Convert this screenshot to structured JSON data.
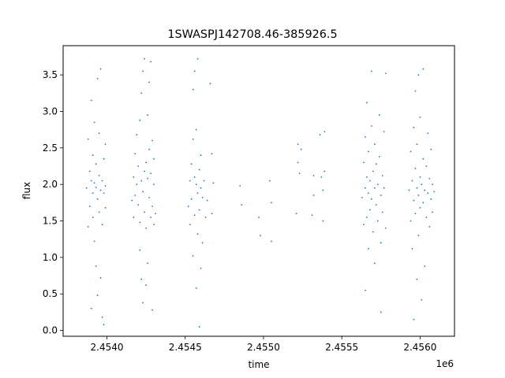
{
  "chart_data": {
    "type": "scatter",
    "title": "1SWASPJ142708.46-385926.5",
    "xlabel": "time",
    "ylabel": "flux",
    "x_offset_label": "1e6",
    "xlim": [
      2.45372,
      2.45622
    ],
    "ylim": [
      -0.08,
      3.9
    ],
    "x_ticks": [
      {
        "value": 2.454,
        "label": "2.4540"
      },
      {
        "value": 2.4545,
        "label": "2.4545"
      },
      {
        "value": 2.455,
        "label": "2.4550"
      },
      {
        "value": 2.4555,
        "label": "2.4555"
      },
      {
        "value": 2.456,
        "label": "2.4560"
      }
    ],
    "y_ticks": [
      {
        "value": 0.0,
        "label": "0.0"
      },
      {
        "value": 0.5,
        "label": "0.5"
      },
      {
        "value": 1.0,
        "label": "1.0"
      },
      {
        "value": 1.5,
        "label": "1.5"
      },
      {
        "value": 2.0,
        "label": "2.0"
      },
      {
        "value": 2.5,
        "label": "2.5"
      },
      {
        "value": 3.0,
        "label": "3.0"
      },
      {
        "value": 3.5,
        "label": "3.5"
      }
    ],
    "grid": false,
    "marker_color": "#1f77b4",
    "series": [
      {
        "points": [
          [
            2.45387,
            1.95
          ],
          [
            2.45388,
            2.62
          ],
          [
            2.45388,
            1.42
          ],
          [
            2.45389,
            2.18
          ],
          [
            2.45389,
            1.7
          ],
          [
            2.4539,
            2.05
          ],
          [
            2.4539,
            3.15
          ],
          [
            2.4539,
            0.3
          ],
          [
            2.45391,
            1.88
          ],
          [
            2.45391,
            2.4
          ],
          [
            2.45391,
            1.55
          ],
          [
            2.45392,
            2.02
          ],
          [
            2.45392,
            2.85
          ],
          [
            2.45392,
            1.22
          ],
          [
            2.45393,
            1.96
          ],
          [
            2.45393,
            2.28
          ],
          [
            2.45393,
            0.88
          ],
          [
            2.45394,
            1.8
          ],
          [
            2.45394,
            3.45
          ],
          [
            2.45394,
            0.48
          ],
          [
            2.45395,
            2.12
          ],
          [
            2.45395,
            1.62
          ],
          [
            2.45395,
            2.7
          ],
          [
            2.45396,
            1.92
          ],
          [
            2.45396,
            0.72
          ],
          [
            2.45396,
            3.58
          ],
          [
            2.45397,
            2.05
          ],
          [
            2.45397,
            1.45
          ],
          [
            2.45397,
            0.18
          ],
          [
            2.45398,
            1.88
          ],
          [
            2.45398,
            2.35
          ],
          [
            2.45398,
            0.08
          ],
          [
            2.45399,
            1.98
          ],
          [
            2.45399,
            1.68
          ],
          [
            2.45399,
            2.55
          ],
          [
            2.45416,
            1.78
          ],
          [
            2.45417,
            2.1
          ],
          [
            2.45417,
            1.55
          ],
          [
            2.45418,
            2.42
          ],
          [
            2.45418,
            1.85
          ],
          [
            2.45419,
            2.0
          ],
          [
            2.45419,
            2.68
          ],
          [
            2.4542,
            1.72
          ],
          [
            2.4542,
            2.25
          ],
          [
            2.45421,
            1.48
          ],
          [
            2.45421,
            2.88
          ],
          [
            2.45421,
            1.1
          ],
          [
            2.45422,
            2.05
          ],
          [
            2.45422,
            3.25
          ],
          [
            2.45422,
            0.7
          ],
          [
            2.45423,
            1.9
          ],
          [
            2.45423,
            3.55
          ],
          [
            2.45423,
            0.38
          ],
          [
            2.45424,
            2.18
          ],
          [
            2.45424,
            1.62
          ],
          [
            2.45424,
            3.72
          ],
          [
            2.45425,
            2.3
          ],
          [
            2.45425,
            1.4
          ],
          [
            2.45425,
            0.62
          ],
          [
            2.45426,
            2.08
          ],
          [
            2.45426,
            2.95
          ],
          [
            2.45426,
            0.92
          ],
          [
            2.45427,
            2.48
          ],
          [
            2.45427,
            1.82
          ],
          [
            2.45427,
            3.4
          ],
          [
            2.45428,
            2.15
          ],
          [
            2.45428,
            1.55
          ],
          [
            2.45428,
            3.68
          ],
          [
            2.45429,
            2.6
          ],
          [
            2.45429,
            1.7
          ],
          [
            2.45429,
            0.28
          ],
          [
            2.4543,
            2.0
          ],
          [
            2.4543,
            1.45
          ],
          [
            2.4543,
            2.35
          ],
          [
            2.45431,
            1.6
          ],
          [
            2.45452,
            1.7
          ],
          [
            2.45453,
            2.05
          ],
          [
            2.45453,
            1.45
          ],
          [
            2.45454,
            2.28
          ],
          [
            2.45454,
            1.8
          ],
          [
            2.45455,
            2.62
          ],
          [
            2.45455,
            1.02
          ],
          [
            2.45455,
            3.3
          ],
          [
            2.45456,
            2.1
          ],
          [
            2.45456,
            1.58
          ],
          [
            2.45456,
            3.55
          ],
          [
            2.45457,
            2.0
          ],
          [
            2.45457,
            2.75
          ],
          [
            2.45457,
            0.58
          ],
          [
            2.45458,
            1.88
          ],
          [
            2.45458,
            1.32
          ],
          [
            2.45458,
            3.72
          ],
          [
            2.45459,
            2.2
          ],
          [
            2.45459,
            1.65
          ],
          [
            2.45459,
            0.05
          ],
          [
            2.4546,
            1.95
          ],
          [
            2.4546,
            2.4
          ],
          [
            2.4546,
            0.85
          ],
          [
            2.45461,
            1.82
          ],
          [
            2.45461,
            1.2
          ],
          [
            2.45462,
            2.05
          ],
          [
            2.45463,
            1.55
          ],
          [
            2.45464,
            1.78
          ],
          [
            2.45466,
            3.38
          ],
          [
            2.45467,
            2.42
          ],
          [
            2.45467,
            1.6
          ],
          [
            2.45468,
            2.02
          ],
          [
            2.45485,
            1.98
          ],
          [
            2.45486,
            1.72
          ],
          [
            2.45497,
            1.55
          ],
          [
            2.45498,
            1.3
          ],
          [
            2.45504,
            2.05
          ],
          [
            2.45505,
            1.75
          ],
          [
            2.45505,
            1.22
          ],
          [
            2.45521,
            1.6
          ],
          [
            2.45522,
            2.55
          ],
          [
            2.45522,
            2.3
          ],
          [
            2.45523,
            2.15
          ],
          [
            2.45524,
            2.48
          ],
          [
            2.45531,
            1.58
          ],
          [
            2.45532,
            2.12
          ],
          [
            2.45532,
            1.85
          ],
          [
            2.45536,
            2.68
          ],
          [
            2.45537,
            2.1
          ],
          [
            2.45538,
            1.5
          ],
          [
            2.45538,
            1.92
          ],
          [
            2.45539,
            2.72
          ],
          [
            2.45539,
            2.18
          ],
          [
            2.45563,
            1.82
          ],
          [
            2.45564,
            2.3
          ],
          [
            2.45564,
            1.45
          ],
          [
            2.45565,
            2.65
          ],
          [
            2.45565,
            1.95
          ],
          [
            2.45565,
            0.55
          ],
          [
            2.45566,
            2.1
          ],
          [
            2.45566,
            1.55
          ],
          [
            2.45566,
            3.12
          ],
          [
            2.45567,
            1.88
          ],
          [
            2.45567,
            2.45
          ],
          [
            2.45567,
            1.12
          ],
          [
            2.45568,
            2.05
          ],
          [
            2.45568,
            1.65
          ],
          [
            2.45569,
            2.8
          ],
          [
            2.45569,
            1.8
          ],
          [
            2.45569,
            3.55
          ],
          [
            2.4557,
            2.18
          ],
          [
            2.4557,
            1.35
          ],
          [
            2.45571,
            1.95
          ],
          [
            2.45571,
            2.55
          ],
          [
            2.45571,
            0.92
          ],
          [
            2.45572,
            1.72
          ],
          [
            2.45572,
            2.28
          ],
          [
            2.45573,
            2.0
          ],
          [
            2.45573,
            1.5
          ],
          [
            2.45574,
            2.38
          ],
          [
            2.45574,
            2.95
          ],
          [
            2.45575,
            1.85
          ],
          [
            2.45575,
            1.2
          ],
          [
            2.45575,
            0.25
          ],
          [
            2.45576,
            2.12
          ],
          [
            2.45576,
            1.62
          ],
          [
            2.45577,
            2.72
          ],
          [
            2.45577,
            1.95
          ],
          [
            2.45578,
            1.4
          ],
          [
            2.45578,
            3.52
          ],
          [
            2.45593,
            1.92
          ],
          [
            2.45594,
            2.45
          ],
          [
            2.45594,
            1.5
          ],
          [
            2.45595,
            2.05
          ],
          [
            2.45595,
            1.12
          ],
          [
            2.45596,
            2.78
          ],
          [
            2.45596,
            1.78
          ],
          [
            2.45596,
            0.15
          ],
          [
            2.45597,
            2.22
          ],
          [
            2.45597,
            1.6
          ],
          [
            2.45597,
            3.28
          ],
          [
            2.45598,
            1.95
          ],
          [
            2.45598,
            2.55
          ],
          [
            2.45598,
            0.7
          ],
          [
            2.45599,
            1.85
          ],
          [
            2.45599,
            3.5
          ],
          [
            2.45599,
            1.3
          ],
          [
            2.456,
            2.1
          ],
          [
            2.456,
            1.68
          ],
          [
            2.456,
            2.92
          ],
          [
            2.45601,
            2.0
          ],
          [
            2.45601,
            0.42
          ],
          [
            2.45602,
            1.75
          ],
          [
            2.45602,
            3.58
          ],
          [
            2.45602,
            2.35
          ],
          [
            2.45603,
            1.92
          ],
          [
            2.45603,
            0.88
          ],
          [
            2.45604,
            2.25
          ],
          [
            2.45604,
            1.55
          ],
          [
            2.45605,
            2.7
          ],
          [
            2.45605,
            1.88
          ],
          [
            2.45606,
            2.08
          ],
          [
            2.45606,
            1.42
          ],
          [
            2.45607,
            2.48
          ],
          [
            2.45607,
            1.8
          ],
          [
            2.45608,
            2.0
          ],
          [
            2.45608,
            1.62
          ],
          [
            2.45609,
            1.9
          ]
        ]
      }
    ]
  }
}
